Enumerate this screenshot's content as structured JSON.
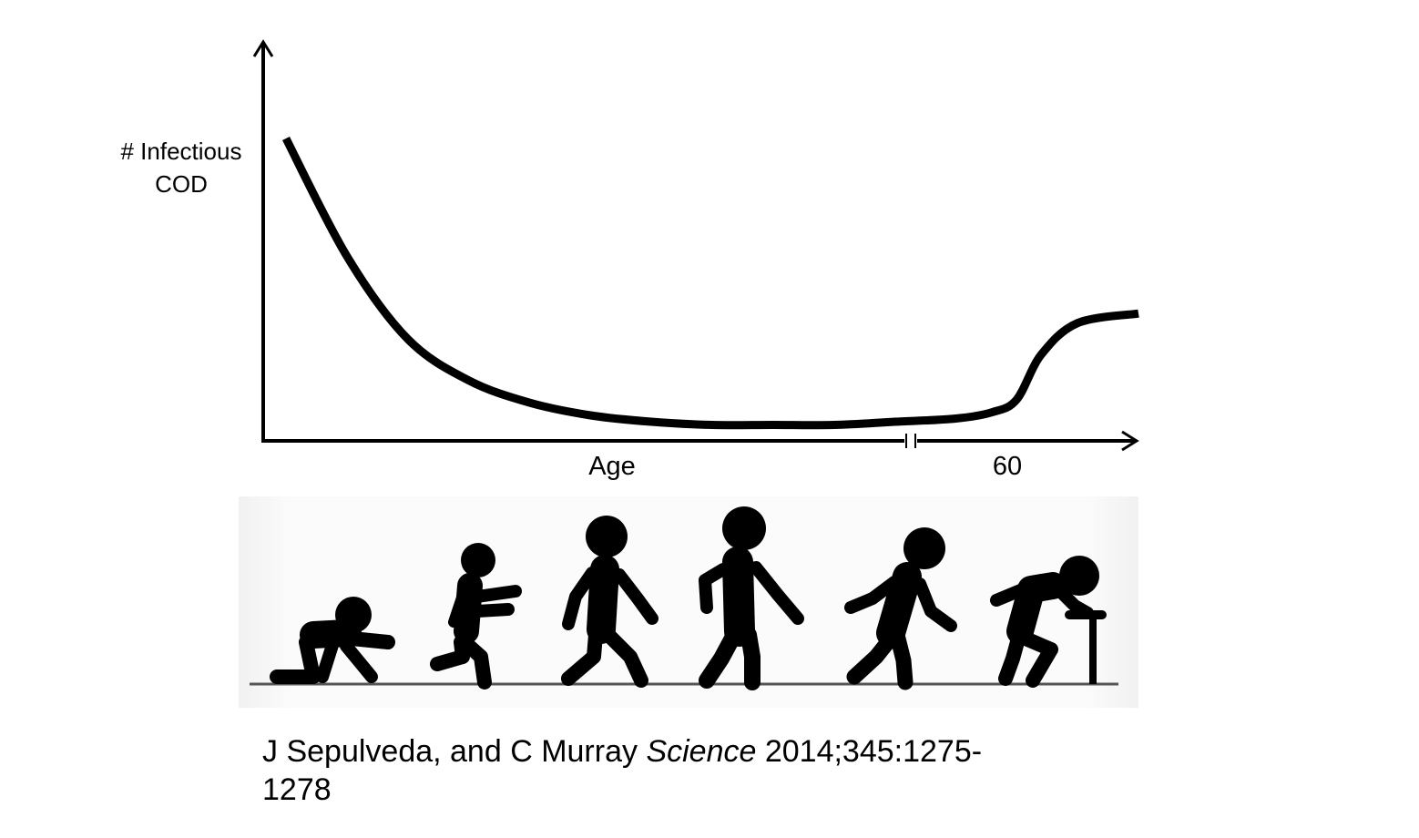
{
  "chart_data": {
    "type": "line",
    "ylabel_lines": [
      "# Infectious",
      "COD"
    ],
    "xlabel": "Age",
    "x_tick_labels": [
      "60"
    ],
    "axis_break": true,
    "grid": false,
    "series": [
      {
        "color": "#000000",
        "x": [
          0,
          5,
          10,
          15,
          20,
          25,
          30,
          35,
          40,
          45,
          50,
          55,
          58,
          60,
          62,
          65,
          70
        ],
        "y": [
          9.5,
          5.8,
          3.2,
          1.9,
          1.2,
          0.8,
          0.6,
          0.5,
          0.5,
          0.5,
          0.6,
          0.7,
          0.9,
          1.3,
          2.7,
          3.7,
          4.0
        ]
      }
    ],
    "ylim": [
      0,
      10
    ],
    "xlim": [
      0,
      70
    ]
  },
  "illustration": {
    "name": "Stages of life from crawling infant to elderly person with cane",
    "figure_count": 6,
    "color": "#000000"
  },
  "citation": {
    "authors": "J Sepulveda, and C Murray ",
    "journal": "Science",
    "details_line1": " 2014;345:1275-",
    "details_line2": "1278"
  }
}
